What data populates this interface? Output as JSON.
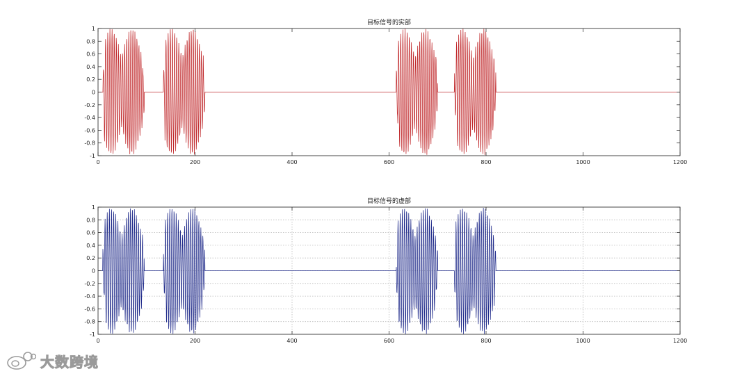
{
  "chart_data": [
    {
      "type": "line",
      "title": "目标信号的实部",
      "xlabel": "",
      "ylabel": "",
      "xlim": [
        0,
        1200
      ],
      "ylim": [
        -1,
        1
      ],
      "x_ticks": [
        0,
        200,
        400,
        600,
        800,
        1000,
        1200
      ],
      "y_ticks": [
        -1,
        -0.8,
        -0.6,
        -0.4,
        -0.2,
        0,
        0.2,
        0.4,
        0.6,
        0.8,
        1
      ],
      "x_tick_labels": [
        "0",
        "200",
        "400",
        "600",
        "800",
        "1000",
        "1200"
      ],
      "y_tick_labels": [
        "-1",
        "-0.8",
        "-0.6",
        "-0.4",
        "-0.2",
        "0",
        "0.2",
        "0.4",
        "0.6",
        "0.8",
        "1"
      ],
      "grid": false,
      "line_color": "#c0282b",
      "segments": [
        {
          "x_start": 10,
          "x_end": 95,
          "amplitude": 1.0,
          "period": 4.5
        },
        {
          "x_start": 135,
          "x_end": 220,
          "amplitude": 1.0,
          "period": 4.5
        },
        {
          "x_start": 615,
          "x_end": 700,
          "amplitude": 1.0,
          "period": 4.5
        },
        {
          "x_start": 735,
          "x_end": 820,
          "amplitude": 1.0,
          "period": 4.5
        }
      ],
      "baseline": 0
    },
    {
      "type": "line",
      "title": "目标信号的虚部",
      "xlabel": "",
      "ylabel": "",
      "xlim": [
        0,
        1200
      ],
      "ylim": [
        -1,
        1
      ],
      "x_ticks": [
        0,
        200,
        400,
        600,
        800,
        1000,
        1200
      ],
      "y_ticks": [
        -1,
        -0.8,
        -0.6,
        -0.4,
        -0.2,
        0,
        0.2,
        0.4,
        0.6,
        0.8,
        1
      ],
      "x_tick_labels": [
        "0",
        "200",
        "400",
        "600",
        "800",
        "1000",
        "1200"
      ],
      "y_tick_labels": [
        "-1",
        "-0.8",
        "-0.6",
        "-0.4",
        "-0.2",
        "0",
        "0.2",
        "0.4",
        "0.6",
        "0.8",
        "1"
      ],
      "grid": true,
      "line_color": "#1f2a8a",
      "segments": [
        {
          "x_start": 10,
          "x_end": 95,
          "amplitude": 1.0,
          "period": 4.5
        },
        {
          "x_start": 135,
          "x_end": 220,
          "amplitude": 1.0,
          "period": 4.5
        },
        {
          "x_start": 615,
          "x_end": 700,
          "amplitude": 1.0,
          "period": 4.5
        },
        {
          "x_start": 735,
          "x_end": 820,
          "amplitude": 1.0,
          "period": 4.5
        }
      ],
      "baseline": 0
    }
  ],
  "watermark": {
    "text": "大数跨境",
    "icon": "weibo-logo-icon"
  }
}
